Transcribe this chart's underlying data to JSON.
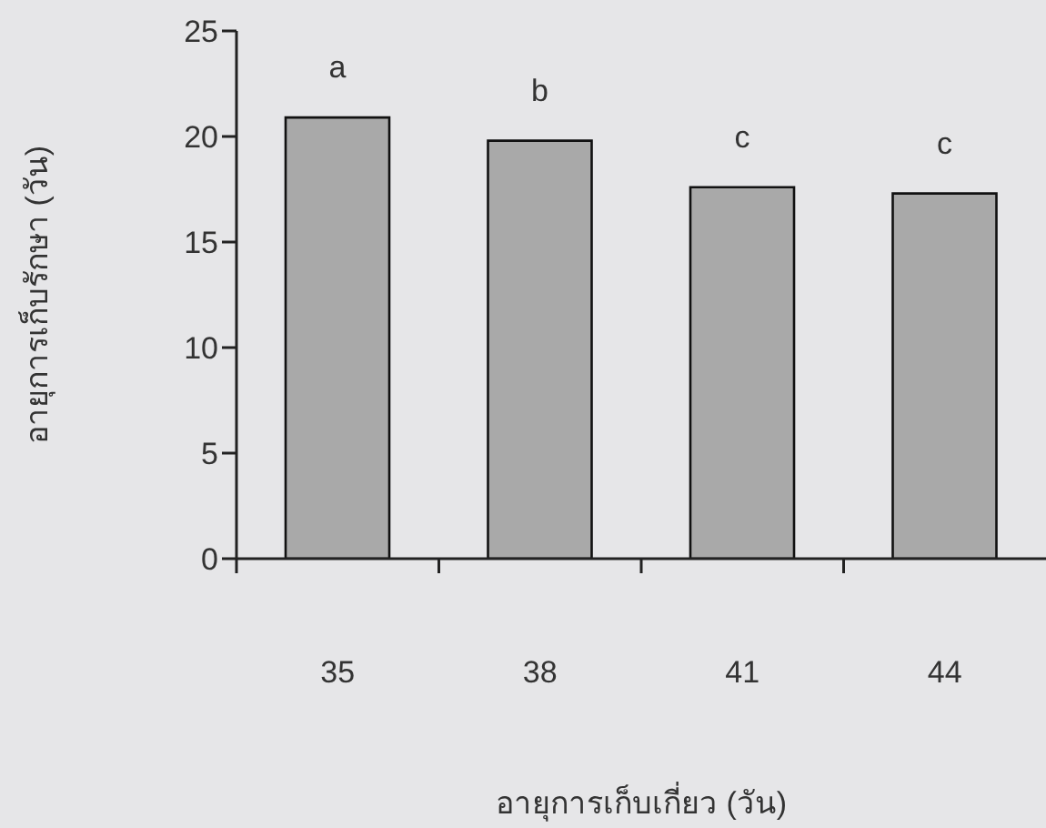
{
  "chart_data": {
    "type": "bar",
    "xlabel": "อายุการเก็บเกี่ยว (วัน)",
    "ylabel": "อายุการเก็บรักษา (วัน)",
    "categories": [
      "35",
      "38",
      "41",
      "44"
    ],
    "values": [
      20.9,
      19.8,
      17.6,
      17.3
    ],
    "color": "#a9a9a9",
    "ylim": [
      0,
      25
    ],
    "yticks": [
      0,
      5,
      10,
      15,
      20,
      25
    ],
    "grid": false,
    "value_labels": [
      "a",
      "b",
      "c",
      "c"
    ]
  }
}
